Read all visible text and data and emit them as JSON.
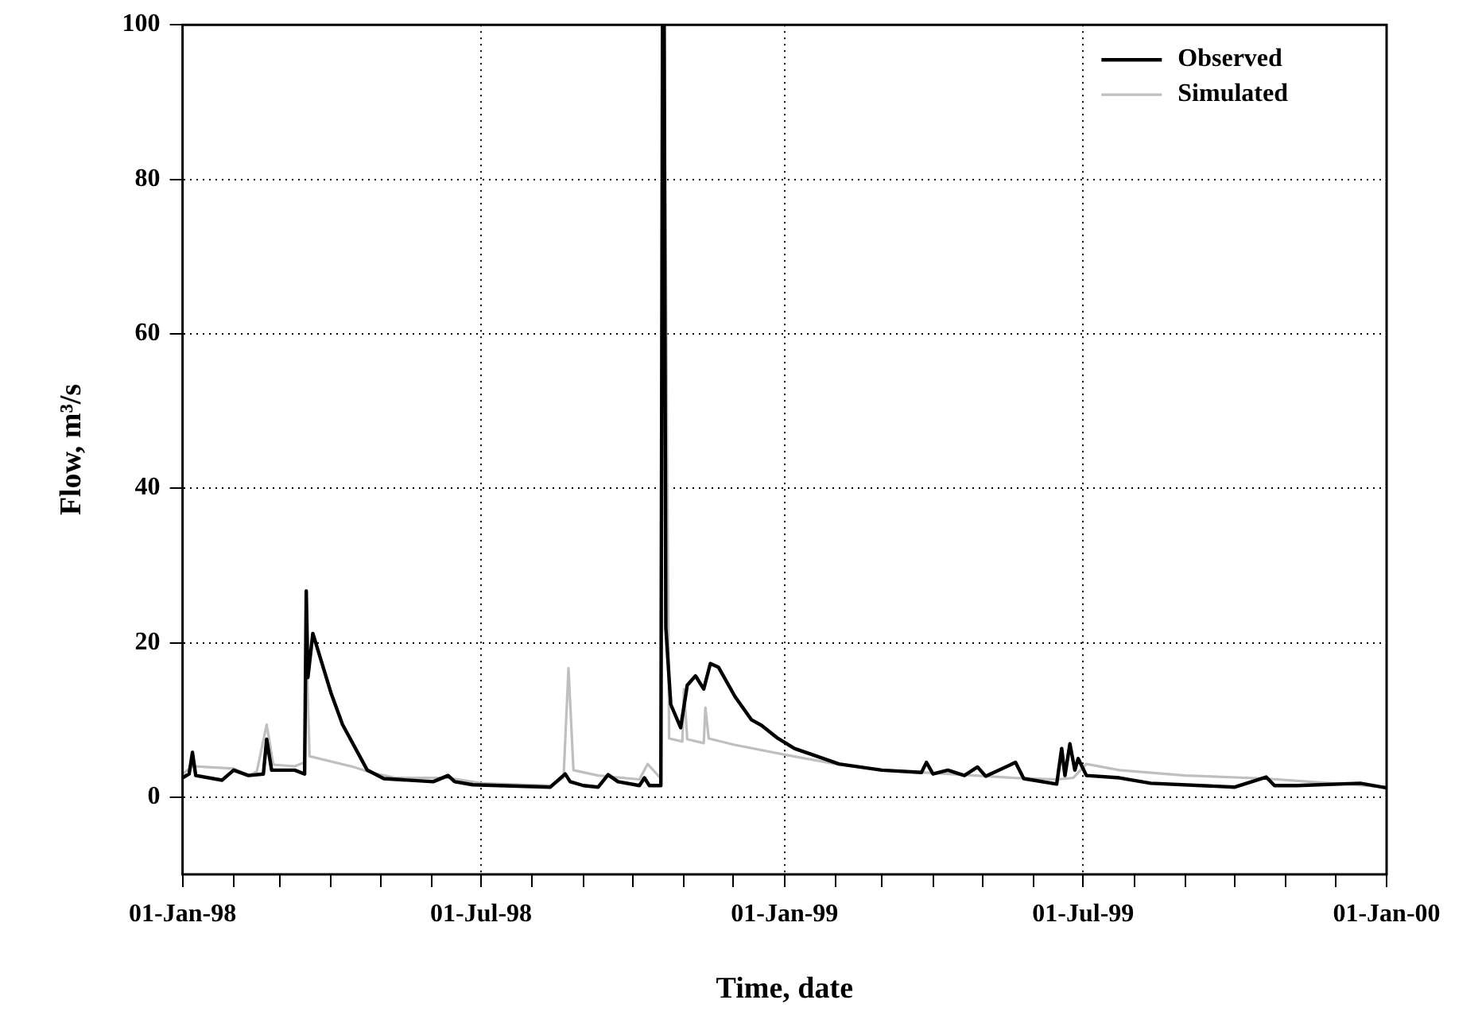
{
  "chart_data": {
    "type": "line",
    "xlabel": "Time, date",
    "ylabel": "Flow, m³/s",
    "xlim": [
      "1998-01-01",
      "2000-01-01"
    ],
    "ylim": [
      -10,
      100
    ],
    "xticks": [
      {
        "value": "1998-01-01",
        "label": "01-Jan-98"
      },
      {
        "value": "1998-02-01",
        "label": null
      },
      {
        "value": "1998-03-01",
        "label": null
      },
      {
        "value": "1998-04-01",
        "label": null
      },
      {
        "value": "1998-05-01",
        "label": null
      },
      {
        "value": "1998-06-01",
        "label": null
      },
      {
        "value": "1998-07-01",
        "label": "01-Jul-98"
      },
      {
        "value": "1998-08-01",
        "label": null
      },
      {
        "value": "1998-09-01",
        "label": null
      },
      {
        "value": "1998-10-01",
        "label": null
      },
      {
        "value": "1998-11-01",
        "label": null
      },
      {
        "value": "1998-12-01",
        "label": null
      },
      {
        "value": "1999-01-01",
        "label": "01-Jan-99"
      },
      {
        "value": "1999-02-01",
        "label": null
      },
      {
        "value": "1999-03-01",
        "label": null
      },
      {
        "value": "1999-04-01",
        "label": null
      },
      {
        "value": "1999-05-01",
        "label": null
      },
      {
        "value": "1999-06-01",
        "label": null
      },
      {
        "value": "1999-07-01",
        "label": "01-Jul-99"
      },
      {
        "value": "1999-08-01",
        "label": null
      },
      {
        "value": "1999-09-01",
        "label": null
      },
      {
        "value": "1999-10-01",
        "label": null
      },
      {
        "value": "1999-11-01",
        "label": null
      },
      {
        "value": "1999-12-01",
        "label": null
      },
      {
        "value": "2000-01-01",
        "label": "01-Jan-00"
      }
    ],
    "yticks": [
      0,
      20,
      40,
      60,
      80,
      100
    ],
    "grid": true,
    "legend": "top right",
    "marker": "none",
    "line_style": "solid",
    "series": [
      {
        "name": "Observed",
        "color": "#000000",
        "x": [
          "1998-01-01",
          "1998-01-05",
          "1998-01-07",
          "1998-01-09",
          "1998-01-25",
          "1998-02-01",
          "1998-02-10",
          "1998-02-19",
          "1998-02-21",
          "1998-02-24",
          "1998-03-10",
          "1998-03-16",
          "1998-03-17",
          "1998-03-18",
          "1998-03-21",
          "1998-04-01",
          "1998-04-08",
          "1998-04-23",
          "1998-05-03",
          "1998-06-02",
          "1998-06-11",
          "1998-06-15",
          "1998-06-26",
          "1998-08-12",
          "1998-08-21",
          "1998-08-24",
          "1998-09-01",
          "1998-09-10",
          "1998-09-16",
          "1998-09-22",
          "1998-10-05",
          "1998-10-08",
          "1998-10-11",
          "1998-10-18",
          "1998-10-19",
          "1998-10-20",
          "1998-10-21",
          "1998-10-24",
          "1998-10-30",
          "1998-11-03",
          "1998-11-08",
          "1998-11-13",
          "1998-11-17",
          "1998-11-22",
          "1998-12-02",
          "1998-12-12",
          "1998-12-18",
          "1998-12-28",
          "1999-01-07",
          "1999-02-03",
          "1999-03-01",
          "1999-03-25",
          "1999-03-28",
          "1999-04-01",
          "1999-04-10",
          "1999-04-20",
          "1999-04-28",
          "1999-05-03",
          "1999-05-21",
          "1999-05-26",
          "1999-06-15",
          "1999-06-18",
          "1999-06-20",
          "1999-06-23",
          "1999-06-26",
          "1999-06-28",
          "1999-07-03",
          "1999-07-23",
          "1999-08-11",
          "1999-10-01",
          "1999-10-20",
          "1999-10-25",
          "1999-11-08",
          "1999-12-16",
          "2000-01-01"
        ],
        "values": [
          2.5,
          3,
          5.8,
          2.8,
          2.2,
          3.5,
          2.8,
          3,
          7.5,
          3.5,
          3.5,
          3,
          26.7,
          15.5,
          21.2,
          13.5,
          9.4,
          3.5,
          2.4,
          2,
          2.8,
          2,
          1.6,
          1.3,
          3,
          2,
          1.5,
          1.3,
          2.9,
          2,
          1.5,
          2.5,
          1.5,
          1.5,
          100,
          100,
          22,
          12,
          9,
          14.5,
          15.7,
          14,
          17.3,
          16.8,
          13,
          10,
          9.3,
          7.6,
          6.3,
          4.3,
          3.5,
          3.2,
          4.5,
          3,
          3.5,
          2.8,
          3.9,
          2.7,
          4.5,
          2.4,
          1.7,
          6.3,
          2.8,
          6.9,
          3.5,
          5,
          2.8,
          2.5,
          1.8,
          1.3,
          2.6,
          1.5,
          1.5,
          1.8,
          1.2
        ]
      },
      {
        "name": "Simulated",
        "color": "#bfbfbf",
        "x": [
          "1998-01-01",
          "1998-01-07",
          "1998-02-01",
          "1998-02-10",
          "1998-02-15",
          "1998-02-21",
          "1998-02-25",
          "1998-03-10",
          "1998-03-16",
          "1998-03-17",
          "1998-03-19",
          "1998-04-15",
          "1998-04-25",
          "1998-05-10",
          "1998-06-11",
          "1998-07-01",
          "1998-08-12",
          "1998-08-20",
          "1998-08-23",
          "1998-08-26",
          "1998-09-10",
          "1998-10-05",
          "1998-10-10",
          "1998-10-18",
          "1998-10-19",
          "1998-10-20",
          "1998-10-21",
          "1998-10-23",
          "1998-10-31",
          "1998-11-01",
          "1998-11-03",
          "1998-11-13",
          "1998-11-14",
          "1998-11-16",
          "1998-12-01",
          "1999-01-01",
          "1999-02-01",
          "1999-03-01",
          "1999-04-10",
          "1999-05-20",
          "1999-06-15",
          "1999-06-25",
          "1999-07-03",
          "1999-07-23",
          "1999-09-01",
          "1999-10-20",
          "1999-11-15",
          "2000-01-01"
        ],
        "values": [
          3,
          4,
          3.7,
          2.8,
          3.3,
          9.4,
          4.2,
          4,
          4.5,
          20,
          5.3,
          3.9,
          3.2,
          2.5,
          2.5,
          1.8,
          1.5,
          2.5,
          16.7,
          3.5,
          2.8,
          2.3,
          4.3,
          2.4,
          100,
          100,
          null,
          7.6,
          7.2,
          14,
          7.5,
          7,
          11.6,
          7.6,
          6.8,
          5.5,
          4.3,
          3.5,
          3,
          2.5,
          2.3,
          2.5,
          4.3,
          3.5,
          2.8,
          2.4,
          2,
          1.3
        ]
      }
    ]
  }
}
